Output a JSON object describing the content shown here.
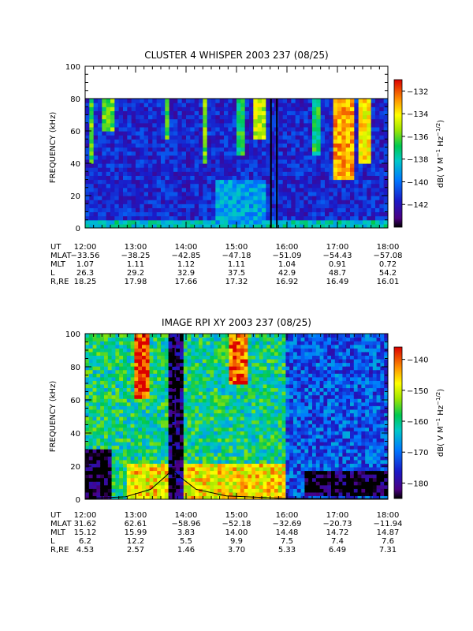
{
  "chart_data": [
    {
      "type": "heatmap",
      "title": "CLUSTER 4 WHISPER 2003 237 (08/25)",
      "ylabel": "FREQUENCY (kHz)",
      "ylim": [
        0,
        100
      ],
      "yticks": [
        "0",
        "20",
        "40",
        "60",
        "80",
        "100"
      ],
      "xticks": [
        "12:00",
        "13:00",
        "14:00",
        "15:00",
        "16:00",
        "17:00",
        "18:00"
      ],
      "colorbar": {
        "label": "dB( V M⁻¹ Hz⁻¹ᐟ²)",
        "label_main": "dB( V M",
        "label_sup1": "−1",
        "label_mid": "Hz",
        "label_sup2": "−1/2",
        "label_end": ")",
        "range": [
          -144,
          -131
        ],
        "ticks": [
          "-132",
          "-134",
          "-136",
          "-138",
          "-140",
          "-142"
        ]
      },
      "ephemeris": [
        {
          "label": "UT",
          "values": [
            "12:00",
            "13:00",
            "14:00",
            "15:00",
            "16:00",
            "17:00",
            "18:00"
          ]
        },
        {
          "label": "MLAT",
          "values": [
            "-33.56",
            "-38.25",
            "-42.85",
            "-47.18",
            "-51.09",
            "-54.43",
            "-57.08"
          ]
        },
        {
          "label": "MLT",
          "values": [
            "1.07",
            "1.11",
            "1.12",
            "1.11",
            "1.04",
            "0.91",
            "0.72"
          ]
        },
        {
          "label": "L",
          "values": [
            "26.3",
            "29.2",
            "32.9",
            "37.5",
            "42.9",
            "48.7",
            "54.2"
          ]
        },
        {
          "label": "R,RE",
          "values": [
            "18.25",
            "17.98",
            "17.66",
            "17.32",
            "16.92",
            "16.49",
            "16.01"
          ]
        }
      ],
      "ephemeris_top_label": "MLAT",
      "data_ceiling_khz": 80,
      "marker_times": [
        "15:41",
        "15:48"
      ],
      "features": [
        {
          "kind": "background",
          "level": -141.5
        },
        {
          "kind": "emission_burst",
          "t_start": "12:05",
          "t_end": "12:10",
          "f_low": 40,
          "f_high": 80,
          "level": -136
        },
        {
          "kind": "emission_burst",
          "t_start": "12:20",
          "t_end": "12:35",
          "f_low": 60,
          "f_high": 80,
          "level": -136
        },
        {
          "kind": "emission_burst",
          "t_start": "13:35",
          "t_end": "13:42",
          "f_low": 55,
          "f_high": 80,
          "level": -136
        },
        {
          "kind": "emission_burst",
          "t_start": "14:18",
          "t_end": "14:27",
          "f_low": 40,
          "f_high": 80,
          "level": -136
        },
        {
          "kind": "emission_burst",
          "t_start": "15:00",
          "t_end": "15:12",
          "f_low": 45,
          "f_high": 80,
          "level": -137
        },
        {
          "kind": "emission_burst",
          "t_start": "15:22",
          "t_end": "15:34",
          "f_low": 55,
          "f_high": 80,
          "level": -135
        },
        {
          "kind": "emission_burst",
          "t_start": "16:30",
          "t_end": "16:42",
          "f_low": 45,
          "f_high": 80,
          "level": -137
        },
        {
          "kind": "emission_burst",
          "t_start": "16:55",
          "t_end": "17:20",
          "f_low": 30,
          "f_high": 80,
          "level": -133
        },
        {
          "kind": "emission_burst",
          "t_start": "17:25",
          "t_end": "17:40",
          "f_low": 40,
          "f_high": 80,
          "level": -134
        },
        {
          "kind": "low_freq_band",
          "t_start": "12:00",
          "t_end": "18:00",
          "f_low": 1,
          "f_high": 6,
          "level": -138
        },
        {
          "kind": "low_freq_hump",
          "t_start": "14:35",
          "t_end": "15:35",
          "f_low": 2,
          "f_high": 30,
          "level": -139
        }
      ]
    },
    {
      "type": "heatmap",
      "title": "IMAGE RPI XY 2003 237 (08/25)",
      "ylabel": "FREQUENCY (kHz)",
      "ylim": [
        0,
        100
      ],
      "yticks": [
        "0",
        "20",
        "40",
        "60",
        "80",
        "100"
      ],
      "xticks": [
        "12:00",
        "13:00",
        "14:00",
        "15:00",
        "16:00",
        "17:00",
        "18:00"
      ],
      "colorbar": {
        "label_main": "dB( V M",
        "label_sup1": "−1",
        "label_mid": "Hz",
        "label_sup2": "−1/2",
        "label_end": ")",
        "range": [
          -185,
          -136
        ],
        "ticks": [
          "-140",
          "-150",
          "-160",
          "-170",
          "-180"
        ]
      },
      "ephemeris": [
        {
          "label": "UT",
          "values": [
            "12:00",
            "13:00",
            "14:00",
            "15:00",
            "16:00",
            "17:00",
            "18:00"
          ]
        },
        {
          "label": "MLAT",
          "values": [
            "31.62",
            "62.61",
            "-58.96",
            "-52.18",
            "-32.69",
            "-20.73",
            "-11.94"
          ]
        },
        {
          "label": "MLT",
          "values": [
            "15.12",
            "15.99",
            "3.83",
            "14.00",
            "14.48",
            "14.72",
            "14.87"
          ]
        },
        {
          "label": "L",
          "values": [
            "6.2",
            "12.2",
            "5.5",
            "9.9",
            "7.5",
            "7.4",
            "7.6"
          ]
        },
        {
          "label": "R,RE",
          "values": [
            "4.53",
            "2.57",
            "1.46",
            "3.70",
            "5.33",
            "6.49",
            "7.31"
          ]
        }
      ],
      "features": [
        {
          "kind": "background_left",
          "t_start": "12:00",
          "t_end": "16:00",
          "level": -160
        },
        {
          "kind": "background_right",
          "t_start": "16:00",
          "t_end": "18:00",
          "level": -172
        },
        {
          "kind": "intense_band",
          "t_start": "12:50",
          "t_end": "16:00",
          "f_low": 0,
          "f_high": 22,
          "level": -147
        },
        {
          "kind": "intense_column",
          "t_start": "13:00",
          "t_end": "13:15",
          "f_low": 60,
          "f_high": 100,
          "level": -138
        },
        {
          "kind": "intense_column",
          "t_start": "14:50",
          "t_end": "15:15",
          "f_low": 70,
          "f_high": 100,
          "level": -140
        },
        {
          "kind": "quiet_column",
          "t_start": "13:40",
          "t_end": "13:55",
          "f_low": 0,
          "f_high": 100,
          "level": -183
        },
        {
          "kind": "plasma_cutoff_black",
          "t_start": "12:00",
          "t_end": "12:30",
          "f_low": 0,
          "f_high": 30,
          "level": -185
        },
        {
          "kind": "plasma_cutoff_black",
          "t_start": "16:20",
          "t_end": "18:00",
          "f_low": 2,
          "f_high": 18,
          "level": -185
        }
      ],
      "overlay_curves": [
        {
          "color": "#000000",
          "style": "solid",
          "note": "local cyclotron frequency",
          "points": [
            [
              12.0,
              0.5
            ],
            [
              12.8,
              1.5
            ],
            [
              13.3,
              6
            ],
            [
              13.6,
              14
            ],
            [
              13.73,
              18
            ],
            [
              13.86,
              14
            ],
            [
              14.2,
              6
            ],
            [
              14.8,
              2
            ],
            [
              16.0,
              0.5
            ],
            [
              18.0,
              0.3
            ]
          ]
        },
        {
          "color": "#000000",
          "style": "dashed",
          "points": [
            [
              13.75,
              0
            ],
            [
              13.75,
              100
            ]
          ]
        }
      ]
    }
  ]
}
